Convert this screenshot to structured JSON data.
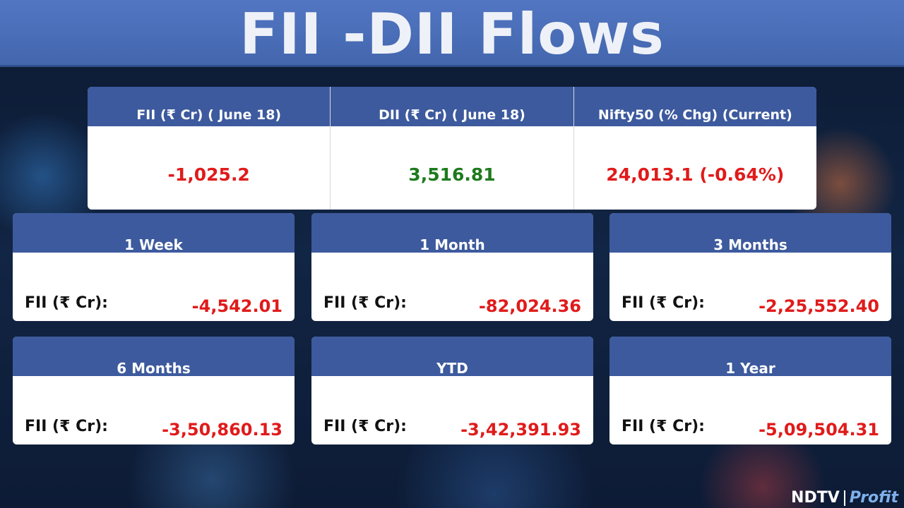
{
  "header": {
    "title": "FII -DII Flows"
  },
  "summary": {
    "columns": [
      {
        "label": "FII (₹ Cr) ( June 18)",
        "value": "-1,025.2",
        "trend": "negative"
      },
      {
        "label": "DII (₹ Cr) ( June 18)",
        "value": "3,516.81",
        "trend": "positive"
      },
      {
        "label": "Nifty50 (% Chg) (Current)",
        "value": "24,013.1 (-0.64%)",
        "trend": "negative"
      }
    ]
  },
  "cards": [
    {
      "period": "1 Week",
      "label": "FII (₹ Cr):",
      "value": "-4,542.01"
    },
    {
      "period": "1 Month",
      "label": "FII (₹ Cr):",
      "value": "-82,024.36"
    },
    {
      "period": "3 Months",
      "label": "FII (₹ Cr):",
      "value": "-2,25,552.40"
    },
    {
      "period": "6 Months",
      "label": "FII (₹ Cr):",
      "value": "-3,50,860.13"
    },
    {
      "period": "YTD",
      "label": "FII (₹ Cr):",
      "value": "-3,42,391.93"
    },
    {
      "period": "1 Year",
      "label": "FII (₹ Cr):",
      "value": "-5,09,504.31"
    }
  ],
  "logo": {
    "brand": "NDTV",
    "product": "Profit"
  }
}
